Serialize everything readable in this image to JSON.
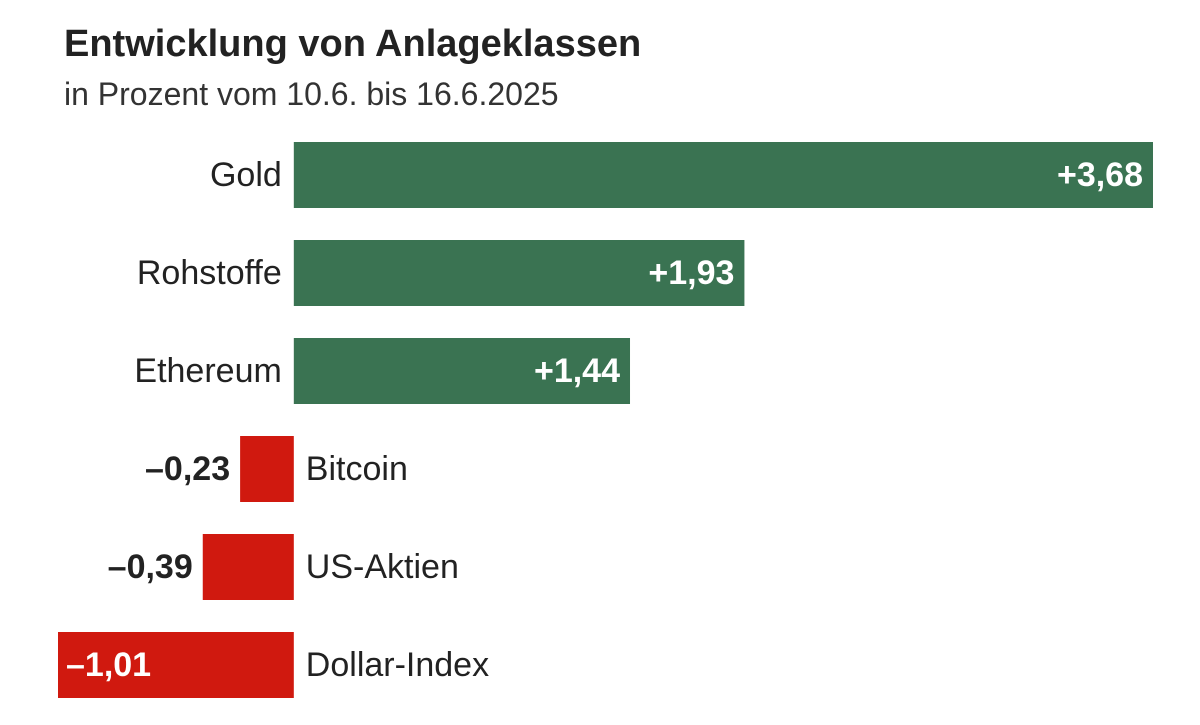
{
  "chart_data": {
    "type": "bar",
    "orientation": "horizontal",
    "title": "Entwicklung von Anlageklassen",
    "subtitle": "in Prozent vom 10.6. bis 16.6.2025",
    "categories": [
      "Gold",
      "Rohstoffe",
      "Ethereum",
      "Bitcoin",
      "US-Aktien",
      "Dollar-Index"
    ],
    "values": [
      3.68,
      1.93,
      1.44,
      -0.23,
      -0.39,
      -1.01
    ],
    "value_labels": [
      "+3,68",
      "+1,93",
      "+1,44",
      "–0,23",
      "–0,39",
      "–1,01"
    ],
    "colors": [
      "#3a7352",
      "#3a7352",
      "#3a7352",
      "#d0190f",
      "#d0190f",
      "#d0190f"
    ]
  }
}
